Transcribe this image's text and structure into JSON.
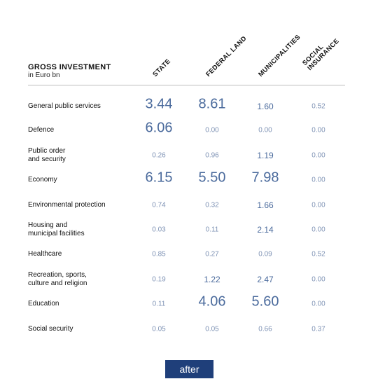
{
  "chart_data": {
    "type": "table",
    "title": "GROSS INVESTMENT",
    "subtitle": "in Euro bn",
    "columns": [
      {
        "lines": [
          "STATE"
        ]
      },
      {
        "lines": [
          "FEDERAL LAND"
        ]
      },
      {
        "lines": [
          "MUNICIPALITIES"
        ]
      },
      {
        "lines": [
          "SOCIAL",
          "INSURANCE"
        ]
      }
    ],
    "rows": [
      {
        "lines": [
          "General public services"
        ],
        "values": [
          "3.44",
          "8.61",
          "1.60",
          "0.52"
        ]
      },
      {
        "lines": [
          "Defence"
        ],
        "values": [
          "6.06",
          "0.00",
          "0.00",
          "0.00"
        ]
      },
      {
        "lines": [
          "Public order",
          "and security"
        ],
        "values": [
          "0.26",
          "0.96",
          "1.19",
          "0.00"
        ]
      },
      {
        "lines": [
          "Economy"
        ],
        "values": [
          "6.15",
          "5.50",
          "7.98",
          "0.00"
        ]
      },
      {
        "lines": [
          "Environmental protection"
        ],
        "values": [
          "0.74",
          "0.32",
          "1.66",
          "0.00"
        ]
      },
      {
        "lines": [
          "Housing and",
          "municipal facilities"
        ],
        "values": [
          "0.03",
          "0.11",
          "2.14",
          "0.00"
        ]
      },
      {
        "lines": [
          "Healthcare"
        ],
        "values": [
          "0.85",
          "0.27",
          "0.09",
          "0.52"
        ]
      },
      {
        "lines": [
          "Recreation, sports,",
          "culture and religion"
        ],
        "values": [
          "0.19",
          "1.22",
          "2.47",
          "0.00"
        ]
      },
      {
        "lines": [
          "Education"
        ],
        "values": [
          "0.11",
          "4.06",
          "5.60",
          "0.00"
        ]
      },
      {
        "lines": [
          "Social security"
        ],
        "values": [
          "0.05",
          "0.05",
          "0.66",
          "0.37"
        ]
      }
    ]
  },
  "controls": {
    "after_label": "after"
  }
}
